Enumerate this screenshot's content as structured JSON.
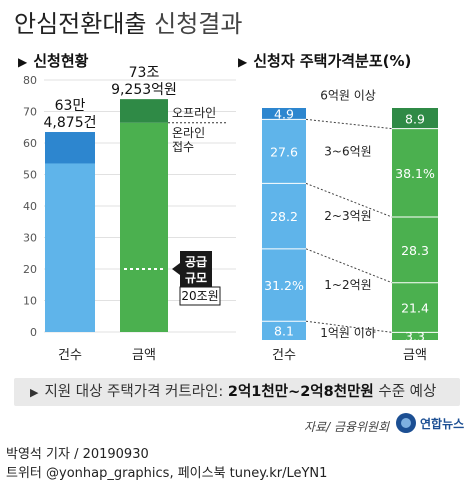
{
  "header": {
    "title_main": "안심전환대출",
    "title_sub": "신청결과"
  },
  "left_section": {
    "label": "신청현황"
  },
  "right_section": {
    "label": "신청자 주택가격분포(%)"
  },
  "colors": {
    "blue_dark": "#2d86cf",
    "blue_light": "#5fb4ea",
    "green_dark": "#2f8a46",
    "green_light": "#4bb04f",
    "text_white": "#ffffff",
    "dotted": "#333333"
  },
  "chart_data": [
    {
      "type": "bar",
      "title": "신청현황",
      "categories": [
        "건수",
        "금액"
      ],
      "ylim": [
        0,
        80
      ],
      "yticks": [
        "0",
        "10",
        "20",
        "30",
        "40",
        "50",
        "60",
        "70",
        "80"
      ],
      "grid": true,
      "bars": [
        {
          "category": "건수",
          "total": 63.4875,
          "label_line1": "63만",
          "label_line2": "4,875건",
          "segments": [
            {
              "name": "",
              "value": 53.5,
              "color": "#5fb4ea"
            },
            {
              "name": "",
              "value": 9.9875,
              "color": "#2d86cf"
            }
          ]
        },
        {
          "category": "금액",
          "total": 73.9253,
          "label_line1": "73조",
          "label_line2": "9,253억원",
          "segments": [
            {
              "name": "온라인\n접수",
              "value": 66.4253,
              "color": "#4bb04f"
            },
            {
              "name": "오프라인",
              "value": 7.5,
              "color": "#2f8a46"
            }
          ]
        }
      ],
      "annotations": {
        "offline_label": "오프라인",
        "online_label_line1": "온라인",
        "online_label_line2": "접수",
        "supply_line1": "공급",
        "supply_line2": "규모",
        "supply_value_text": "20조원",
        "supply_value": 20
      }
    },
    {
      "type": "bar",
      "title": "신청자 주택가격분포(%)",
      "categories": [
        "건수",
        "금액"
      ],
      "ylim": [
        0,
        100
      ],
      "grid": false,
      "stacked": true,
      "segment_order_bottom_up": [
        "1억원 이하",
        "1~2억원",
        "2~3억원",
        "3~6억원",
        "6억원 이상"
      ],
      "series": [
        {
          "name": "1억원 이하",
          "values": [
            8.1,
            3.3
          ],
          "labels": [
            "8.1",
            "3.3"
          ]
        },
        {
          "name": "1~2억원",
          "values": [
            31.2,
            21.4
          ],
          "labels": [
            "31.2%",
            "21.4"
          ]
        },
        {
          "name": "2~3억원",
          "values": [
            28.2,
            28.3
          ],
          "labels": [
            "28.2",
            "28.3"
          ]
        },
        {
          "name": "3~6억원",
          "values": [
            27.6,
            38.1
          ],
          "labels": [
            "27.6",
            "38.1%"
          ]
        },
        {
          "name": "6억원 이상",
          "values": [
            4.9,
            8.9
          ],
          "labels": [
            "4.9",
            "8.9"
          ]
        }
      ]
    }
  ],
  "notice": {
    "prefix": "지원 대상 주택가격 커트라인:",
    "highlight": "2억1천만~2억8천만원",
    "suffix": "수준 예상"
  },
  "source_text": "자료/ 금융위원회",
  "logo_text": "연합뉴스",
  "credits": {
    "line1": "박영석 기자 / 20190930",
    "line2": "트위터 @yonhap_graphics, 페이스북 tuney.kr/LeYN1"
  }
}
